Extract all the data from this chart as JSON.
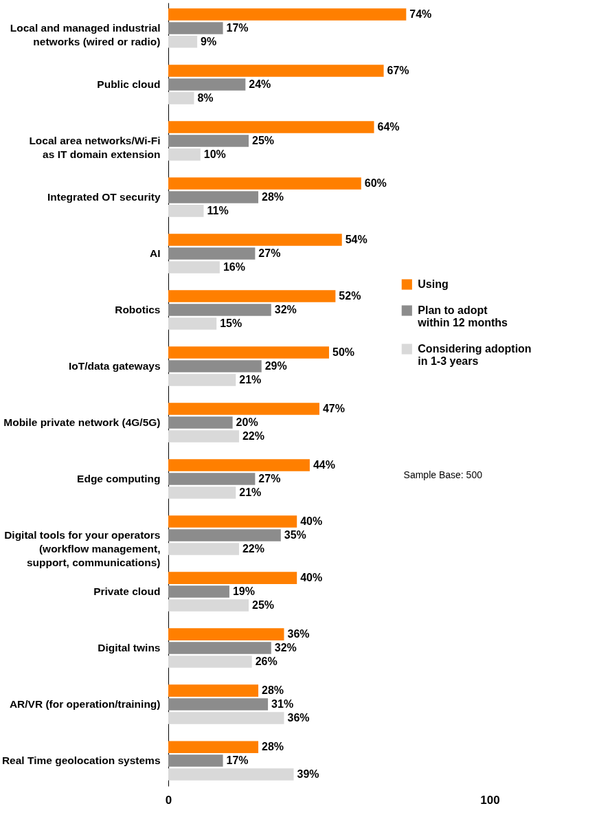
{
  "chart_data": {
    "type": "bar",
    "orientation": "horizontal",
    "categories": [
      "Local and managed industrial\nnetworks  (wired or radio)",
      "Public cloud",
      "Local area networks/Wi-Fi\nas IT domain extension",
      "Integrated OT security",
      "AI",
      "Robotics",
      "IoT/data gateways",
      "Mobile private network (4G/5G)",
      "Edge computing",
      "Digital tools for your operators\n(workflow management,\nsupport, communications)",
      "Private cloud",
      "Digital twins",
      "AR/VR (for operation/training)",
      "Real Time geolocation systems"
    ],
    "series": [
      {
        "name": "Using",
        "color": "#ff7f00",
        "values": [
          74,
          67,
          64,
          60,
          54,
          52,
          50,
          47,
          44,
          40,
          40,
          36,
          28,
          28
        ],
        "value_labels": [
          "74%",
          "67%",
          "64%",
          "60%",
          "54%",
          "52%",
          "50%",
          "47%",
          "44%",
          "40%",
          "40%",
          "36%",
          "28%",
          "28%"
        ]
      },
      {
        "name": "Plan to adopt\nwithin 12 months",
        "color": "#8c8c8c",
        "values": [
          17,
          24,
          25,
          28,
          27,
          32,
          29,
          20,
          27,
          35,
          19,
          32,
          31,
          17
        ],
        "value_labels": [
          "17%",
          "24%",
          "25%",
          "28%",
          "27%",
          "32%",
          "29%",
          "20%",
          "27%",
          "35%",
          "19%",
          "32%",
          "31%",
          "17%"
        ]
      },
      {
        "name": "Considering adoption\nin 1-3 years",
        "color": "#d9d9d9",
        "values": [
          9,
          8,
          10,
          11,
          16,
          15,
          21,
          22,
          21,
          22,
          25,
          26,
          36,
          39
        ],
        "value_labels": [
          "9%",
          "8%",
          "10%",
          "11%",
          "16%",
          "15%",
          "21%",
          "22%",
          "21%",
          "22%",
          "25%",
          "26%",
          "36%",
          "39%"
        ]
      }
    ],
    "xlim": [
      0,
      100
    ],
    "xticks": [
      0,
      100
    ],
    "legend": "right",
    "annotations": [
      "Sample Base: 500"
    ]
  }
}
